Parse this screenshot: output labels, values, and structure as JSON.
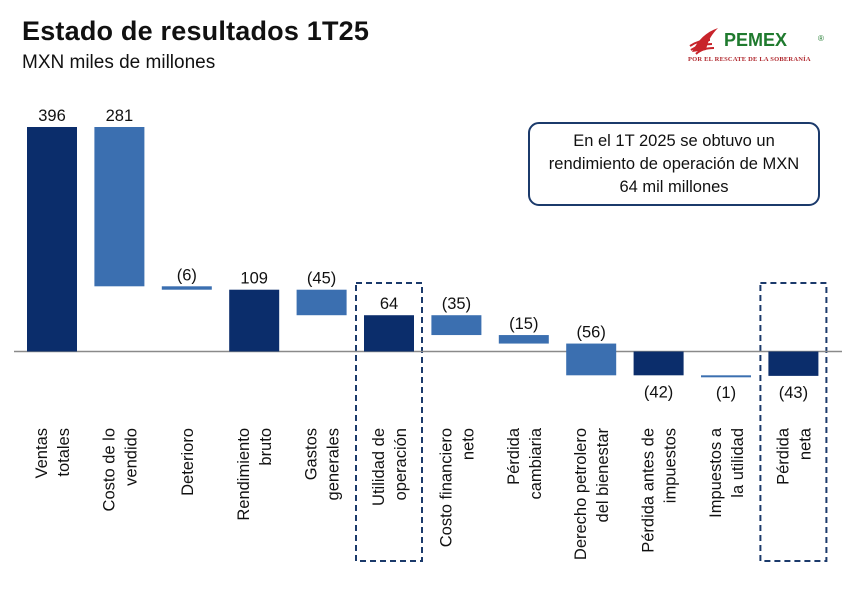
{
  "header": {
    "title": "Estado de resultados 1T25",
    "subtitle": "MXN miles de millones"
  },
  "logo": {
    "name": "PEMEX",
    "registered": "®",
    "tagline": "POR EL RESCATE DE LA SOBERANÍA",
    "icon": "pemex-eagle-icon"
  },
  "callout": {
    "text": "En el 1T 2025 se obtuvo un rendimiento de operación de MXN 64 mil millones"
  },
  "colors": {
    "dark_bar": "#0b2d6b",
    "light_bar": "#3b6fb0",
    "axis": "#8a8a8a",
    "highlight_border": "#1b3a6b"
  },
  "chart_data": {
    "type": "waterfall",
    "unit": "MXN miles de millones",
    "highlighted": [
      "Utilidad de operación",
      "Pérdida neta"
    ],
    "bars": [
      {
        "label": [
          "Ventas",
          "totales"
        ],
        "value": 396,
        "display": "396",
        "kind": "total",
        "start": 0,
        "end": 396
      },
      {
        "label": [
          "Costo de lo",
          "vendido"
        ],
        "value": -281,
        "display": "281",
        "kind": "delta",
        "start": 396,
        "end": 115
      },
      {
        "label": [
          "Deterioro"
        ],
        "value": -6,
        "display": "(6)",
        "kind": "delta",
        "start": 115,
        "end": 109
      },
      {
        "label": [
          "Rendimiento",
          "bruto"
        ],
        "value": 109,
        "display": "109",
        "kind": "total",
        "start": 0,
        "end": 109
      },
      {
        "label": [
          "Gastos",
          "generales"
        ],
        "value": -45,
        "display": "(45)",
        "kind": "delta",
        "start": 109,
        "end": 64
      },
      {
        "label": [
          "Utilidad de",
          "operación"
        ],
        "value": 64,
        "display": "64",
        "kind": "total",
        "start": 0,
        "end": 64
      },
      {
        "label": [
          "Costo financiero",
          "neto"
        ],
        "value": -35,
        "display": "(35)",
        "kind": "delta",
        "start": 64,
        "end": 29
      },
      {
        "label": [
          "Pérdida",
          "cambiaria"
        ],
        "value": -15,
        "display": "(15)",
        "kind": "delta",
        "start": 29,
        "end": 14
      },
      {
        "label": [
          "Derecho petrolero",
          "del bienestar"
        ],
        "value": -56,
        "display": "(56)",
        "kind": "delta",
        "start": 14,
        "end": -42
      },
      {
        "label": [
          "Pérdida antes de",
          "impuestos"
        ],
        "value": -42,
        "display": "(42)",
        "kind": "total",
        "start": 0,
        "end": -42
      },
      {
        "label": [
          "Impuestos a",
          "la utilidad"
        ],
        "value": -1,
        "display": "(1)",
        "kind": "delta",
        "start": -42,
        "end": -43
      },
      {
        "label": [
          "Pérdida",
          "neta"
        ],
        "value": -43,
        "display": "(43)",
        "kind": "total",
        "start": 0,
        "end": -43
      }
    ]
  }
}
